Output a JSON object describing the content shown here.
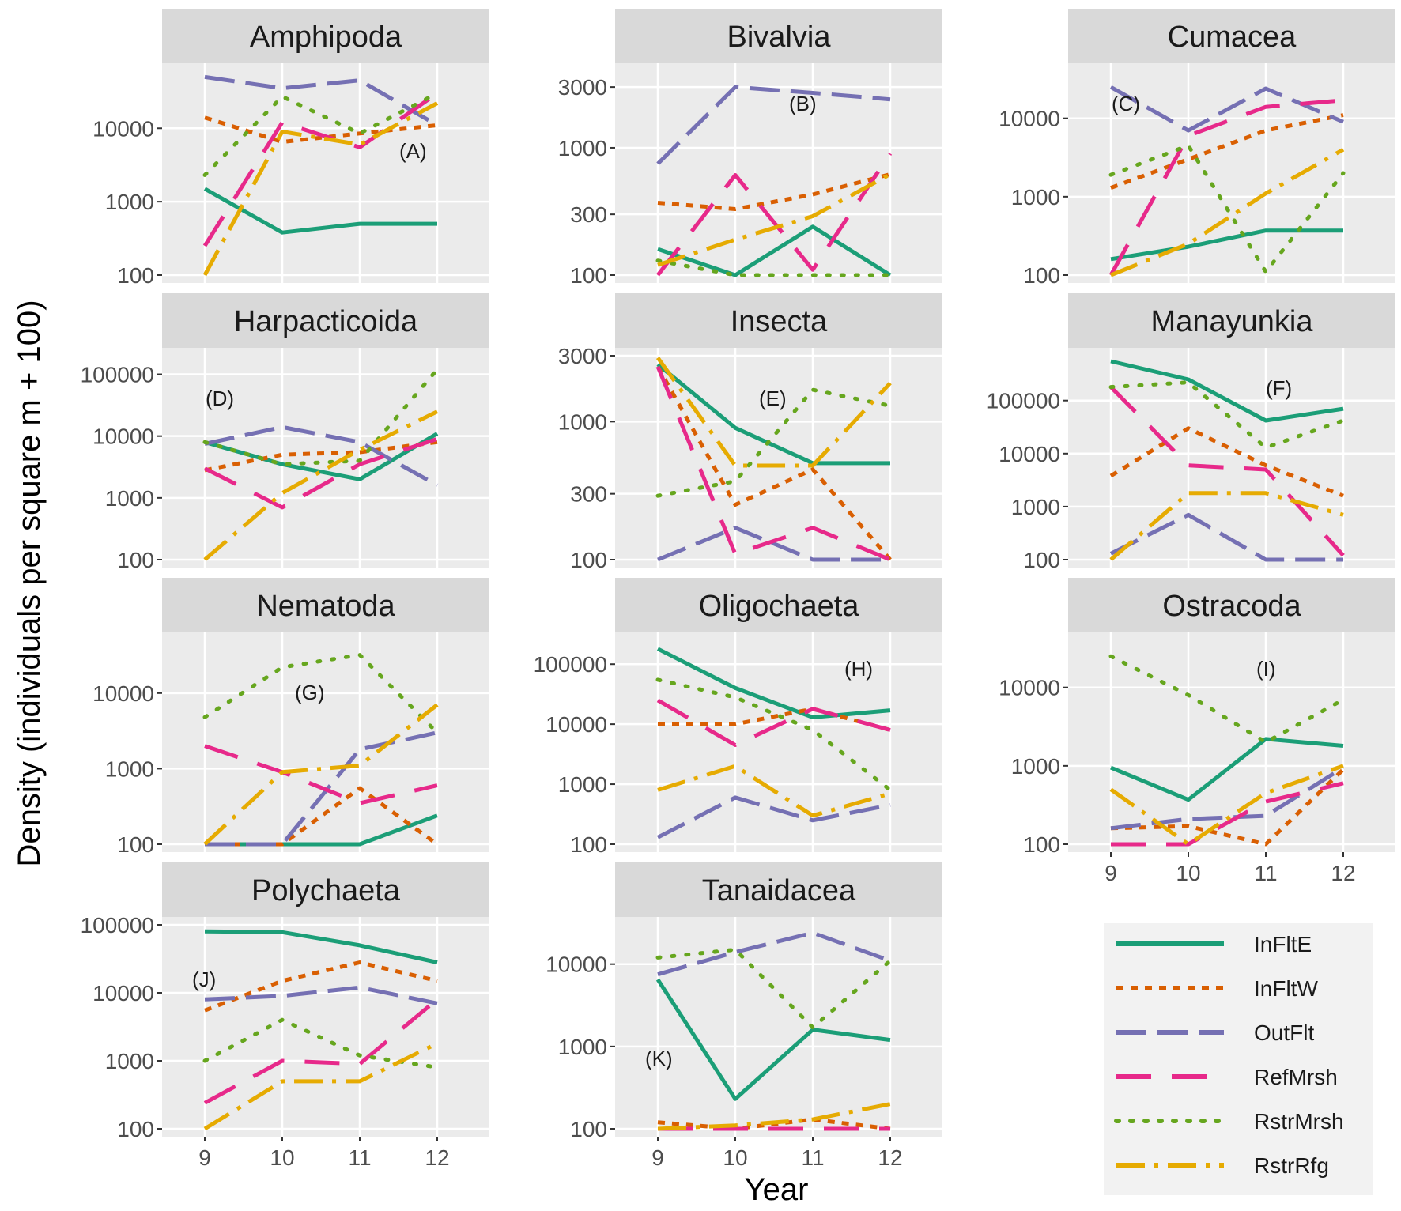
{
  "chart_data": {
    "type": "line",
    "facet": true,
    "scale": "log10 (density + 100)",
    "xlabel": "Year",
    "ylabel": "Density (individuals per square m + 100)",
    "x": [
      9,
      10,
      11,
      12
    ],
    "x_ticks": [
      "9",
      "10",
      "11",
      "12"
    ],
    "series_names": [
      "InFltE",
      "InFltW",
      "OutFlt",
      "RefMrsh",
      "RstrMrsh",
      "RstrRfg"
    ],
    "colors": {
      "InFltE": "#1b9e77",
      "InFltW": "#d95f02",
      "OutFlt": "#7570b3",
      "RefMrsh": "#e7298a",
      "RstrMrsh": "#66a61e",
      "RstrRfg": "#e6ab02"
    },
    "legend": {
      "position": "bottom-right",
      "entries": [
        "InFltE",
        "InFltW",
        "OutFlt",
        "RefMrsh",
        "RstrMrsh",
        "RstrRfg"
      ]
    },
    "panels": [
      {
        "title": "Amphipoda",
        "tag": "(A)",
        "ylim": [
          100,
          60000
        ],
        "y_ticks": [
          100,
          1000,
          10000
        ],
        "y_tick_labels": [
          "100",
          "1000",
          "10000"
        ],
        "series": [
          {
            "name": "InFltE",
            "values": [
              1500,
              380,
              500,
              500
            ]
          },
          {
            "name": "InFltW",
            "values": [
              14000,
              6500,
              8500,
              11000
            ]
          },
          {
            "name": "OutFlt",
            "values": [
              50000,
              35000,
              45000,
              11000
            ]
          },
          {
            "name": "RefMrsh",
            "values": [
              250,
              12000,
              5500,
              30000
            ]
          },
          {
            "name": "RstrMrsh",
            "values": [
              2300,
              27000,
              8500,
              30000
            ]
          },
          {
            "name": "RstrRfg",
            "values": [
              100,
              9000,
              6000,
              22000
            ]
          }
        ]
      },
      {
        "title": "Bivalvia",
        "tag": "(B)",
        "ylim": [
          100,
          4000
        ],
        "y_ticks": [
          100,
          300,
          1000,
          3000
        ],
        "y_tick_labels": [
          "100",
          "300",
          "1000",
          "3000"
        ],
        "series": [
          {
            "name": "InFltE",
            "values": [
              160,
              100,
              240,
              100
            ]
          },
          {
            "name": "InFltW",
            "values": [
              370,
              330,
              430,
              620
            ]
          },
          {
            "name": "OutFlt",
            "values": [
              750,
              3000,
              2700,
              2400
            ]
          },
          {
            "name": "RefMrsh",
            "values": [
              100,
              610,
              110,
              900
            ]
          },
          {
            "name": "RstrMrsh",
            "values": [
              130,
              100,
              100,
              100
            ]
          },
          {
            "name": "RstrRfg",
            "values": [
              120,
              190,
              290,
              620
            ]
          }
        ]
      },
      {
        "title": "Cumacea",
        "tag": "(C)",
        "ylim": [
          100,
          40000
        ],
        "y_ticks": [
          100,
          1000,
          10000
        ],
        "y_tick_labels": [
          "100",
          "1000",
          "10000"
        ],
        "series": [
          {
            "name": "InFltE",
            "values": [
              160,
              230,
              370,
              370
            ]
          },
          {
            "name": "InFltW",
            "values": [
              1300,
              3000,
              7000,
              11000
            ]
          },
          {
            "name": "OutFlt",
            "values": [
              25000,
              7000,
              24000,
              9000
            ]
          },
          {
            "name": "RefMrsh",
            "values": [
              100,
              6000,
              14000,
              17000
            ]
          },
          {
            "name": "RstrMrsh",
            "values": [
              1900,
              4500,
              110,
              2000
            ]
          },
          {
            "name": "RstrRfg",
            "values": [
              100,
              250,
              1100,
              4000
            ]
          }
        ]
      },
      {
        "title": "Harpacticoida",
        "tag": "(D)",
        "ylim": [
          100,
          200000
        ],
        "y_ticks": [
          100,
          1000,
          10000,
          100000
        ],
        "y_tick_labels": [
          "100",
          "1000",
          "10000",
          "100000"
        ],
        "series": [
          {
            "name": "InFltE",
            "values": [
              8000,
              3500,
              2000,
              11000
            ]
          },
          {
            "name": "InFltW",
            "values": [
              2800,
              5000,
              5500,
              8000
            ]
          },
          {
            "name": "OutFlt",
            "values": [
              7500,
              14000,
              8000,
              1600
            ]
          },
          {
            "name": "RefMrsh",
            "values": [
              3000,
              700,
              3500,
              9000
            ]
          },
          {
            "name": "RstrMrsh",
            "values": [
              8000,
              3500,
              4000,
              120000
            ]
          },
          {
            "name": "RstrRfg",
            "values": [
              100,
              1200,
              6000,
              25000
            ]
          }
        ]
      },
      {
        "title": "Insecta",
        "tag": "(E)",
        "ylim": [
          100,
          3000
        ],
        "y_ticks": [
          100,
          300,
          1000,
          3000
        ],
        "y_tick_labels": [
          "100",
          "300",
          "1000",
          "3000"
        ],
        "series": [
          {
            "name": "InFltE",
            "values": [
              2600,
              900,
              500,
              500
            ]
          },
          {
            "name": "InFltW",
            "values": [
              2500,
              250,
              450,
              100
            ]
          },
          {
            "name": "OutFlt",
            "values": [
              100,
              170,
              100,
              100
            ]
          },
          {
            "name": "RefMrsh",
            "values": [
              2500,
              110,
              170,
              100
            ]
          },
          {
            "name": "RstrMrsh",
            "values": [
              290,
              370,
              1700,
              1300
            ]
          },
          {
            "name": "RstrRfg",
            "values": [
              2900,
              480,
              480,
              1900
            ]
          }
        ]
      },
      {
        "title": "Manayunkia",
        "tag": "(F)",
        "ylim": [
          100,
          700000
        ],
        "y_ticks": [
          100,
          1000,
          10000,
          100000
        ],
        "y_tick_labels": [
          "100",
          "1000",
          "10000",
          "100000"
        ],
        "series": [
          {
            "name": "InFltE",
            "values": [
              550000,
              250000,
              42000,
              70000
            ]
          },
          {
            "name": "InFltW",
            "values": [
              3800,
              30000,
              6000,
              1600
            ]
          },
          {
            "name": "OutFlt",
            "values": [
              130,
              700,
              100,
              100
            ]
          },
          {
            "name": "RefMrsh",
            "values": [
              180000,
              6000,
              5000,
              120
            ]
          },
          {
            "name": "RstrMrsh",
            "values": [
              180000,
              220000,
              13000,
              42000
            ]
          },
          {
            "name": "RstrRfg",
            "values": [
              100,
              1800,
              1800,
              700
            ]
          }
        ]
      },
      {
        "title": "Nematoda",
        "tag": "(G)",
        "ylim": [
          100,
          50000
        ],
        "y_ticks": [
          100,
          1000,
          10000
        ],
        "y_tick_labels": [
          "100",
          "1000",
          "10000"
        ],
        "series": [
          {
            "name": "InFltE",
            "values": [
              100,
              100,
              100,
              240
            ]
          },
          {
            "name": "InFltW",
            "values": [
              100,
              100,
              550,
              100
            ]
          },
          {
            "name": "OutFlt",
            "values": [
              100,
              100,
              1800,
              3000
            ]
          },
          {
            "name": "RefMrsh",
            "values": [
              2000,
              900,
              350,
              600
            ]
          },
          {
            "name": "RstrMrsh",
            "values": [
              4800,
              22000,
              32000,
              3000
            ]
          },
          {
            "name": "RstrRfg",
            "values": [
              100,
              900,
              1100,
              7000
            ]
          }
        ]
      },
      {
        "title": "Oligochaeta",
        "tag": "(H)",
        "ylim": [
          100,
          250000
        ],
        "y_ticks": [
          100,
          1000,
          10000,
          100000
        ],
        "y_tick_labels": [
          "100",
          "1000",
          "10000",
          "100000"
        ],
        "series": [
          {
            "name": "InFltE",
            "values": [
              180000,
              40000,
              13000,
              17000
            ]
          },
          {
            "name": "InFltW",
            "values": [
              10000,
              10000,
              18000,
              8000
            ]
          },
          {
            "name": "OutFlt",
            "values": [
              130,
              600,
              250,
              450
            ]
          },
          {
            "name": "RefMrsh",
            "values": [
              25000,
              4500,
              18000,
              8000
            ]
          },
          {
            "name": "RstrMrsh",
            "values": [
              55000,
              28000,
              8000,
              800
            ]
          },
          {
            "name": "RstrRfg",
            "values": [
              800,
              2000,
              300,
              700
            ]
          }
        ]
      },
      {
        "title": "Ostracoda",
        "tag": "(I)",
        "ylim": [
          100,
          40000
        ],
        "y_ticks": [
          100,
          1000,
          10000
        ],
        "y_tick_labels": [
          "100",
          "1000",
          "10000"
        ],
        "series": [
          {
            "name": "InFltE",
            "values": [
              950,
              370,
              2200,
              1800
            ]
          },
          {
            "name": "InFltW",
            "values": [
              160,
              170,
              100,
              900
            ]
          },
          {
            "name": "OutFlt",
            "values": [
              160,
              210,
              230,
              950
            ]
          },
          {
            "name": "RefMrsh",
            "values": [
              100,
              100,
              350,
              600
            ]
          },
          {
            "name": "RstrMrsh",
            "values": [
              25000,
              8000,
              2000,
              7000
            ]
          },
          {
            "name": "RstrRfg",
            "values": [
              500,
              100,
              450,
              1000
            ]
          }
        ]
      },
      {
        "title": "Polychaeta",
        "tag": "(J)",
        "ylim": [
          100,
          100000
        ],
        "y_ticks": [
          100,
          1000,
          10000,
          100000
        ],
        "y_tick_labels": [
          "100",
          "1000",
          "10000",
          "100000"
        ],
        "series": [
          {
            "name": "InFltE",
            "values": [
              80000,
              78000,
              50000,
              28000
            ]
          },
          {
            "name": "InFltW",
            "values": [
              5500,
              15000,
              28000,
              15000
            ]
          },
          {
            "name": "OutFlt",
            "values": [
              8000,
              9000,
              12000,
              7000
            ]
          },
          {
            "name": "RefMrsh",
            "values": [
              240,
              1000,
              900,
              8000
            ]
          },
          {
            "name": "RstrMrsh",
            "values": [
              1000,
              4000,
              1200,
              800
            ]
          },
          {
            "name": "RstrRfg",
            "values": [
              100,
              500,
              500,
              1800
            ]
          }
        ]
      },
      {
        "title": "Tanaidacea",
        "tag": "(K)",
        "ylim": [
          100,
          30000
        ],
        "y_ticks": [
          100,
          1000,
          10000
        ],
        "y_tick_labels": [
          "100",
          "1000",
          "10000"
        ],
        "series": [
          {
            "name": "InFltE",
            "values": [
              6500,
              230,
              1600,
              1200
            ]
          },
          {
            "name": "InFltW",
            "values": [
              120,
              100,
              130,
              100
            ]
          },
          {
            "name": "OutFlt",
            "values": [
              7500,
              14000,
              24000,
              11000
            ]
          },
          {
            "name": "RefMrsh",
            "values": [
              100,
              100,
              100,
              100
            ]
          },
          {
            "name": "RstrMrsh",
            "values": [
              12000,
              15000,
              1700,
              11000
            ]
          },
          {
            "name": "RstrRfg",
            "values": [
              100,
              110,
              130,
              200
            ]
          }
        ]
      }
    ]
  }
}
